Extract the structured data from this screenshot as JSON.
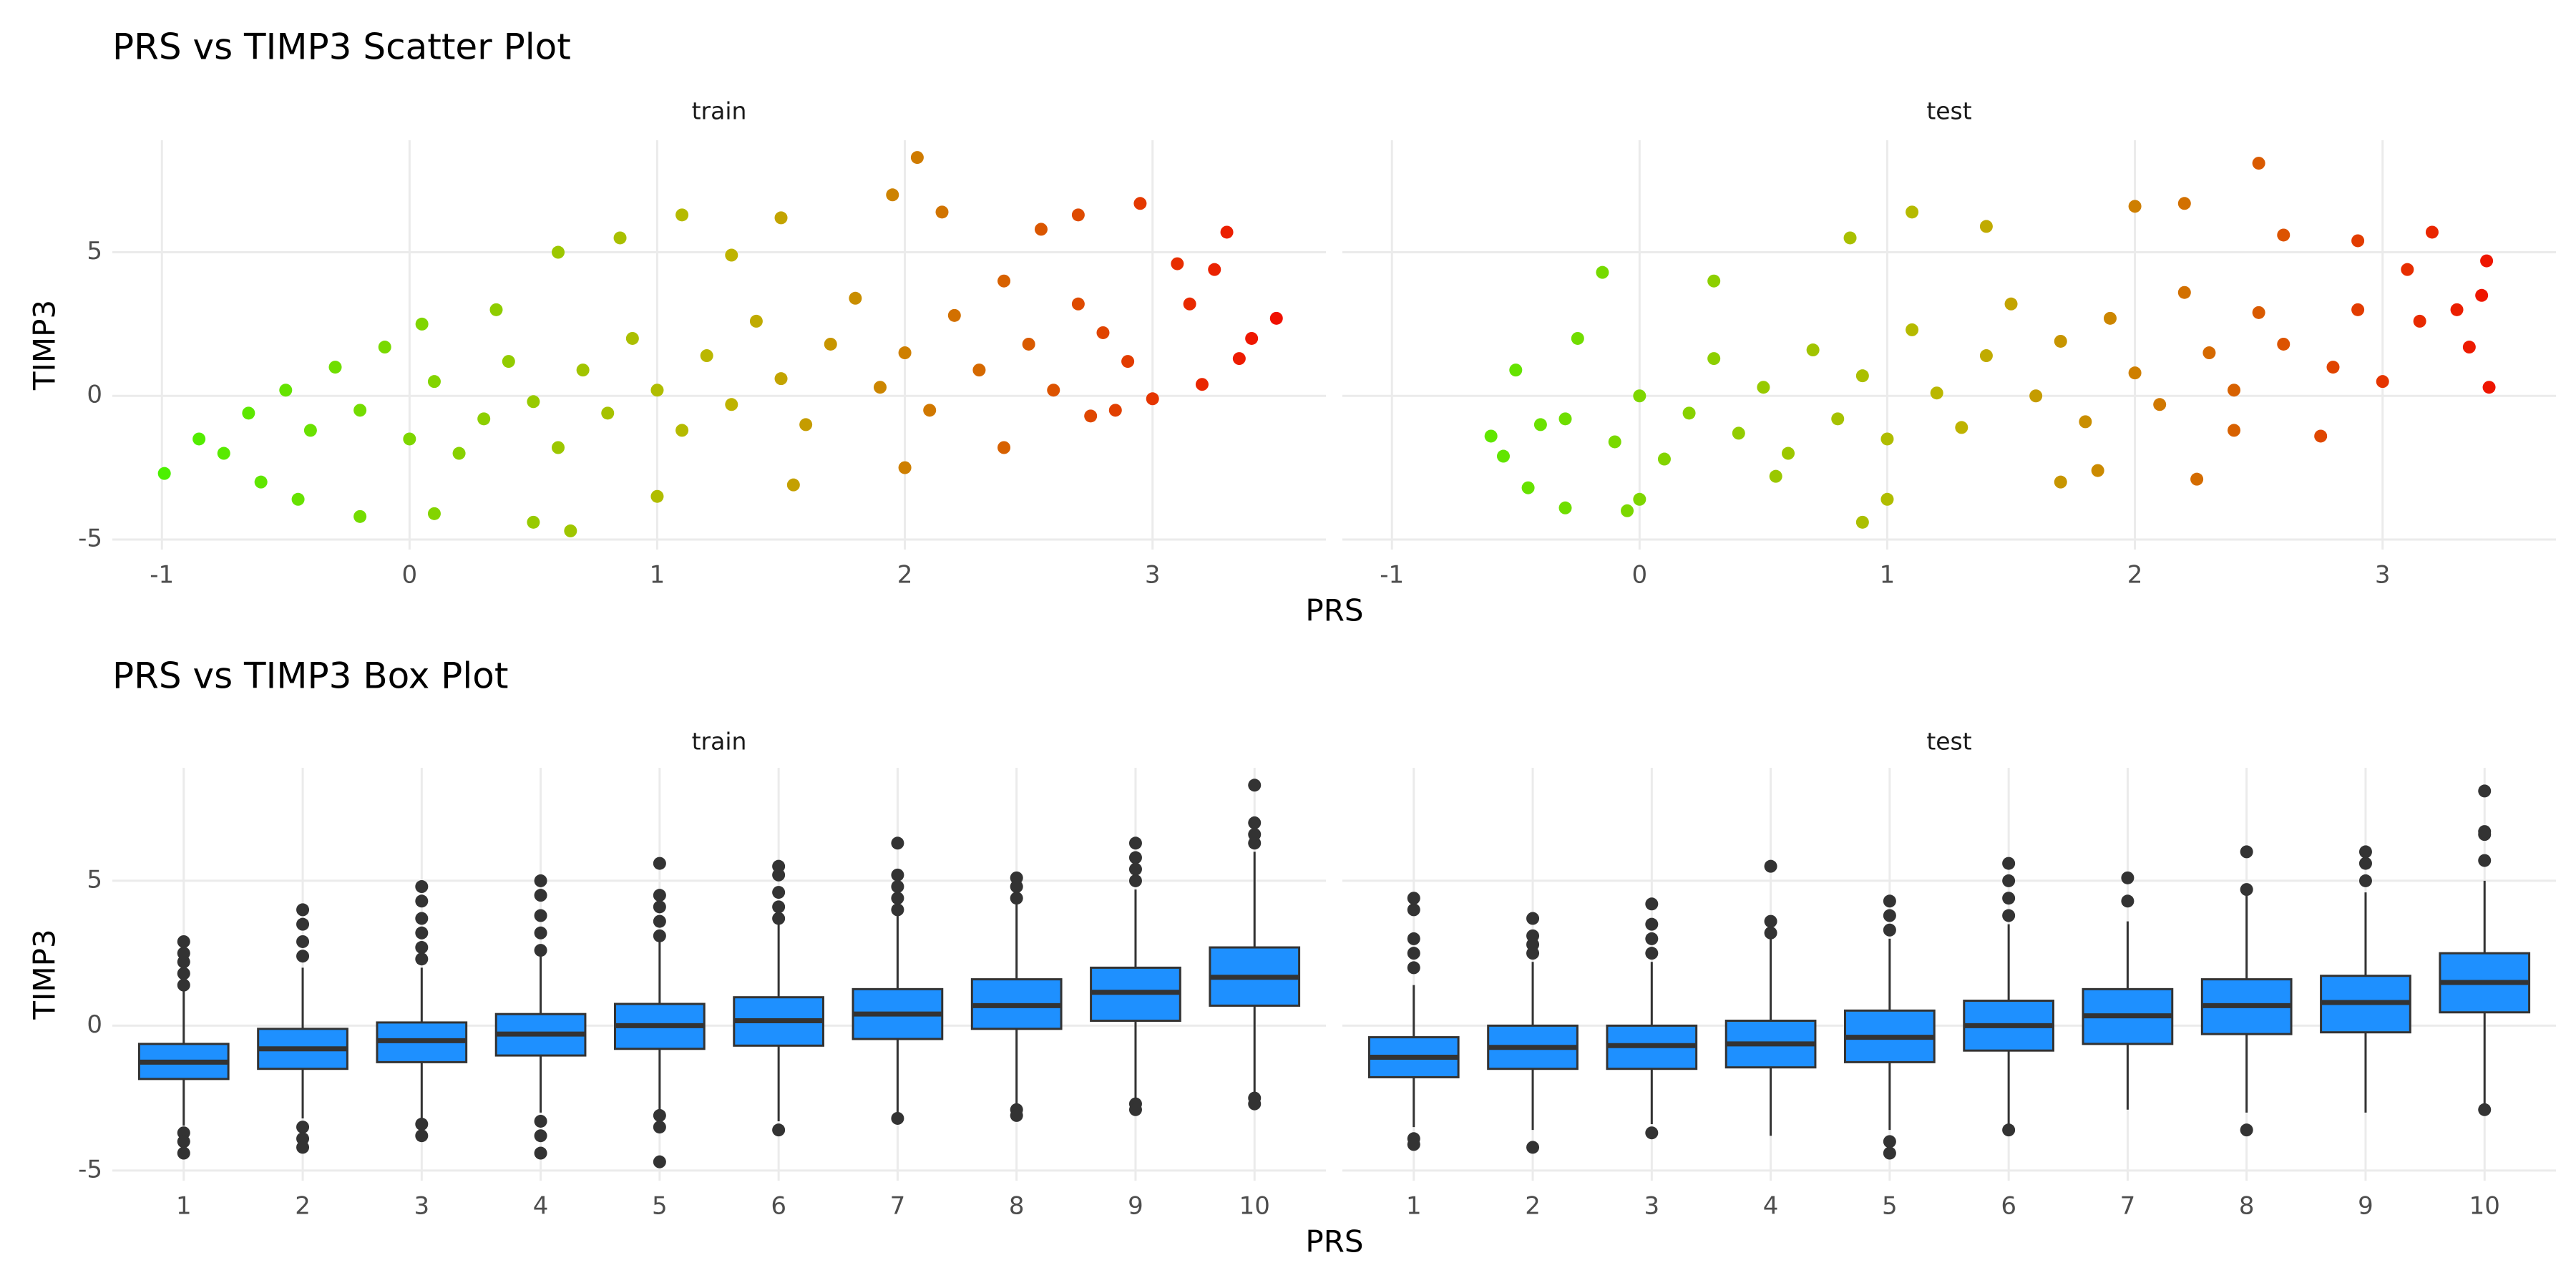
{
  "chart_data": [
    {
      "type": "scatter",
      "title": "PRS vs TIMP3 Scatter Plot",
      "xlabel": "PRS",
      "ylabel": "TIMP3",
      "xlim": [
        -1.2,
        3.7
      ],
      "xticks": [
        -1,
        0,
        1,
        2,
        3
      ],
      "ylim": [
        -5.35,
        8.9
      ],
      "yticks": [
        -5,
        0,
        5
      ],
      "grid": true,
      "colors": [
        "#4cf000",
        "#bdb600",
        "#f01000"
      ],
      "facets": [
        {
          "label": "train",
          "x": [
            -0.99,
            -0.85,
            -0.75,
            -0.65,
            -0.6,
            -0.5,
            -0.45,
            -0.3,
            -0.2,
            -0.1,
            0.05,
            0.1,
            0.35,
            0.5,
            0.65,
            0.6,
            0.85,
            1.1,
            1.0,
            1.3,
            1.5,
            1.55,
            1.95,
            2.05,
            2.0,
            2.15,
            2.4,
            2.55,
            2.7,
            2.75,
            2.95,
            3.0,
            3.1,
            3.2,
            3.25,
            3.3,
            3.35,
            3.4,
            3.5,
            2.85,
            3.15,
            -0.4,
            -0.2,
            0,
            0.1,
            0.2,
            0.3,
            0.4,
            0.5,
            0.6,
            0.7,
            0.8,
            0.9,
            1.0,
            1.1,
            1.2,
            1.3,
            1.4,
            1.5,
            1.6,
            1.7,
            1.8,
            1.9,
            2.0,
            2.1,
            2.2,
            2.3,
            2.4,
            2.5,
            2.6,
            2.7,
            2.8,
            2.9
          ],
          "y": [
            -2.7,
            -1.5,
            -2.0,
            -0.6,
            -3.0,
            0.2,
            -3.6,
            1.0,
            -4.2,
            1.7,
            2.5,
            -4.1,
            3.0,
            -4.4,
            -4.7,
            5.0,
            5.5,
            6.3,
            -3.5,
            4.9,
            6.2,
            -3.1,
            7.0,
            8.3,
            -2.5,
            6.4,
            -1.8,
            5.8,
            6.3,
            -0.7,
            6.7,
            -0.1,
            4.6,
            0.4,
            4.4,
            5.7,
            1.3,
            2.0,
            2.7,
            -0.5,
            3.2,
            -1.2,
            -0.5,
            -1.5,
            0.5,
            -2.0,
            -0.8,
            1.2,
            -0.2,
            -1.8,
            0.9,
            -0.6,
            2.0,
            0.2,
            -1.2,
            1.4,
            -0.3,
            2.6,
            0.6,
            -1.0,
            1.8,
            3.4,
            0.3,
            1.5,
            -0.5,
            2.8,
            0.9,
            4.0,
            1.8,
            0.2,
            3.2,
            2.2,
            1.2
          ]
        },
        {
          "label": "test",
          "x": [
            -0.6,
            -0.55,
            -0.5,
            -0.45,
            -0.4,
            -0.3,
            -0.25,
            -0.15,
            -0.05,
            0.0,
            0.3,
            0.55,
            0.85,
            0.9,
            1.0,
            1.1,
            1.4,
            1.7,
            1.85,
            2.0,
            2.2,
            2.25,
            2.5,
            2.4,
            2.6,
            2.75,
            2.9,
            3.0,
            3.1,
            3.2,
            3.3,
            3.35,
            3.4,
            3.42,
            3.43,
            3.15,
            -0.3,
            -0.1,
            0.0,
            0.1,
            0.2,
            0.3,
            0.4,
            0.5,
            0.6,
            0.7,
            0.8,
            0.9,
            1.0,
            1.1,
            1.2,
            1.3,
            1.4,
            1.5,
            1.6,
            1.7,
            1.8,
            1.9,
            2.0,
            2.1,
            2.2,
            2.3,
            2.4,
            2.5,
            2.6,
            2.8,
            2.9
          ],
          "y": [
            -1.4,
            -2.1,
            0.9,
            -3.2,
            -1.0,
            -3.9,
            2.0,
            4.3,
            -4.0,
            -3.6,
            4.0,
            -2.8,
            5.5,
            -4.4,
            -3.6,
            6.4,
            5.9,
            -3.0,
            -2.6,
            6.6,
            6.7,
            -2.9,
            8.1,
            -1.2,
            5.6,
            -1.4,
            5.4,
            0.5,
            4.4,
            5.7,
            3.0,
            1.7,
            3.5,
            4.7,
            0.3,
            2.6,
            -0.8,
            -1.6,
            0.0,
            -2.2,
            -0.6,
            1.3,
            -1.3,
            0.3,
            -2.0,
            1.6,
            -0.8,
            0.7,
            -1.5,
            2.3,
            0.1,
            -1.1,
            1.4,
            3.2,
            0.0,
            1.9,
            -0.9,
            2.7,
            0.8,
            -0.3,
            3.6,
            1.5,
            0.2,
            2.9,
            1.8,
            1.0,
            3.0
          ]
        }
      ]
    },
    {
      "type": "box",
      "title": "PRS vs TIMP3 Box Plot",
      "xlabel": "PRS",
      "ylabel": "TIMP3",
      "categories": [
        "1",
        "2",
        "3",
        "4",
        "5",
        "6",
        "7",
        "8",
        "9",
        "10"
      ],
      "ylim": [
        -5.35,
        8.9
      ],
      "yticks": [
        -5,
        0,
        5
      ],
      "grid": true,
      "color": "#1e90ff",
      "line_color": "#333333",
      "facets": [
        {
          "label": "train",
          "boxes": [
            {
              "low": -3.45,
              "q1": -1.84,
              "median": -1.26,
              "q3": -0.63,
              "high": 1.2,
              "outliers": [
                1.4,
                1.8,
                2.2,
                2.5,
                2.9,
                -3.7,
                -4.0,
                -4.4
              ]
            },
            {
              "low": -3.2,
              "q1": -1.49,
              "median": -0.8,
              "q3": -0.11,
              "high": 2.0,
              "outliers": [
                2.4,
                2.9,
                3.5,
                4.0,
                -3.5,
                -3.9,
                -4.2
              ]
            },
            {
              "low": -3.2,
              "q1": -1.26,
              "median": -0.52,
              "q3": 0.11,
              "high": 2.0,
              "outliers": [
                2.3,
                2.7,
                3.2,
                3.7,
                4.3,
                4.8,
                -3.4,
                -3.8
              ]
            },
            {
              "low": -3.0,
              "q1": -1.03,
              "median": -0.29,
              "q3": 0.4,
              "high": 2.4,
              "outliers": [
                2.6,
                3.2,
                3.8,
                4.5,
                5.0,
                -3.3,
                -3.8,
                -4.4
              ]
            },
            {
              "low": -2.9,
              "q1": -0.8,
              "median": 0,
              "q3": 0.75,
              "high": 2.9,
              "outliers": [
                3.1,
                3.6,
                4.1,
                4.5,
                5.6,
                -3.1,
                -3.5,
                -4.7
              ]
            },
            {
              "low": -3.3,
              "q1": -0.69,
              "median": 0.17,
              "q3": 0.98,
              "high": 3.5,
              "outliers": [
                3.7,
                4.1,
                4.6,
                5.2,
                5.5,
                -3.6
              ]
            },
            {
              "low": -3.1,
              "q1": -0.46,
              "median": 0.4,
              "q3": 1.26,
              "high": 3.8,
              "outliers": [
                4.0,
                4.4,
                4.8,
                5.2,
                6.3,
                -3.2
              ]
            },
            {
              "low": -2.7,
              "q1": -0.11,
              "median": 0.69,
              "q3": 1.6,
              "high": 4.2,
              "outliers": [
                4.4,
                4.8,
                5.1,
                -2.9,
                -3.1
              ]
            },
            {
              "low": -2.5,
              "q1": 0.17,
              "median": 1.15,
              "q3": 2.0,
              "high": 4.7,
              "outliers": [
                5.0,
                5.4,
                5.8,
                6.3,
                -2.7,
                -2.9
              ]
            },
            {
              "low": -2.3,
              "q1": 0.69,
              "median": 1.67,
              "q3": 2.7,
              "high": 6.0,
              "outliers": [
                6.3,
                6.6,
                7.0,
                8.3,
                -2.5,
                -2.7
              ]
            }
          ]
        },
        {
          "label": "test",
          "boxes": [
            {
              "low": -3.5,
              "q1": -1.78,
              "median": -1.09,
              "q3": -0.4,
              "high": 1.4,
              "outliers": [
                2.0,
                2.5,
                3.0,
                4.0,
                4.4,
                -3.9,
                -4.1
              ]
            },
            {
              "low": -3.6,
              "q1": -1.49,
              "median": -0.75,
              "q3": 0,
              "high": 2.2,
              "outliers": [
                2.5,
                2.8,
                3.1,
                3.7,
                -4.2
              ]
            },
            {
              "low": -3.4,
              "q1": -1.49,
              "median": -0.69,
              "q3": 0,
              "high": 2.2,
              "outliers": [
                2.5,
                3.0,
                3.5,
                4.2,
                -3.7
              ]
            },
            {
              "low": -3.8,
              "q1": -1.44,
              "median": -0.63,
              "q3": 0.17,
              "high": 3.0,
              "outliers": [
                3.2,
                3.6,
                5.5
              ]
            },
            {
              "low": -3.6,
              "q1": -1.26,
              "median": -0.4,
              "q3": 0.52,
              "high": 3.0,
              "outliers": [
                3.3,
                3.8,
                4.3,
                -4.0,
                -4.4
              ]
            },
            {
              "low": -3.4,
              "q1": -0.86,
              "median": 0,
              "q3": 0.86,
              "high": 3.5,
              "outliers": [
                3.8,
                4.4,
                5.0,
                5.6,
                -3.6
              ]
            },
            {
              "low": -2.9,
              "q1": -0.63,
              "median": 0.34,
              "q3": 1.26,
              "high": 3.6,
              "outliers": [
                4.3,
                5.1
              ]
            },
            {
              "low": -3.0,
              "q1": -0.29,
              "median": 0.69,
              "q3": 1.6,
              "high": 4.5,
              "outliers": [
                4.7,
                6.0,
                -3.6
              ]
            },
            {
              "low": -3.0,
              "q1": -0.23,
              "median": 0.8,
              "q3": 1.72,
              "high": 4.6,
              "outliers": [
                5.0,
                5.6,
                6.0
              ]
            },
            {
              "low": -2.7,
              "q1": 0.46,
              "median": 1.49,
              "q3": 2.5,
              "high": 5.0,
              "outliers": [
                5.7,
                6.6,
                6.7,
                8.1,
                -2.9
              ]
            }
          ]
        }
      ]
    }
  ]
}
